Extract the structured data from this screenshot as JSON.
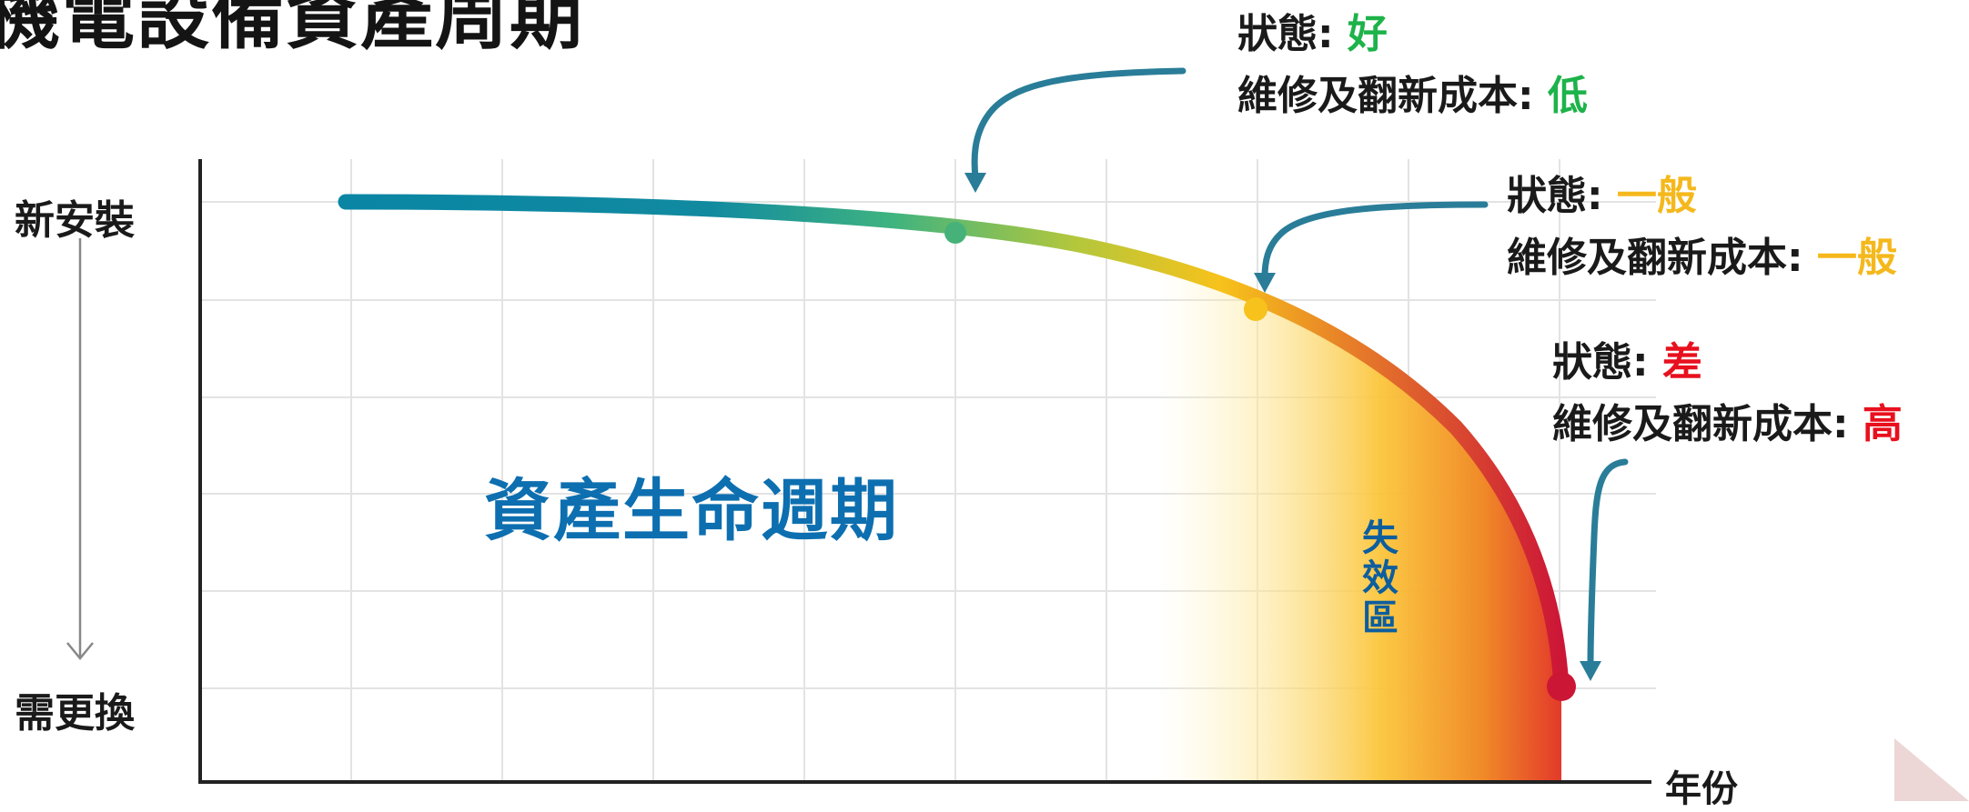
{
  "title": "機電設備資產周期",
  "y_axis": {
    "top_label": "新安裝",
    "bottom_label": "需更換"
  },
  "x_axis": {
    "label": "年份"
  },
  "lifecycle_label": "資產生命週期",
  "failure_zone_label": "失效區",
  "states": [
    {
      "condition_prefix": "狀態: ",
      "condition_value": "好",
      "cost_prefix": "維修及翻新成本: ",
      "cost_value": "低",
      "color": "#1db34a"
    },
    {
      "condition_prefix": "狀態: ",
      "condition_value": "一般",
      "cost_prefix": "維修及翻新成本: ",
      "cost_value": "一般",
      "color": "#f5b81c"
    },
    {
      "condition_prefix": "狀態: ",
      "condition_value": "差",
      "cost_prefix": "維修及翻新成本: ",
      "cost_value": "高",
      "color": "#e8101e"
    }
  ],
  "colors": {
    "curve_start": "#0a86a4",
    "curve_mid": "#f7c21b",
    "curve_end": "#cc1636",
    "arrow": "#2a7d98",
    "title_blue": "#0d6fb0"
  }
}
